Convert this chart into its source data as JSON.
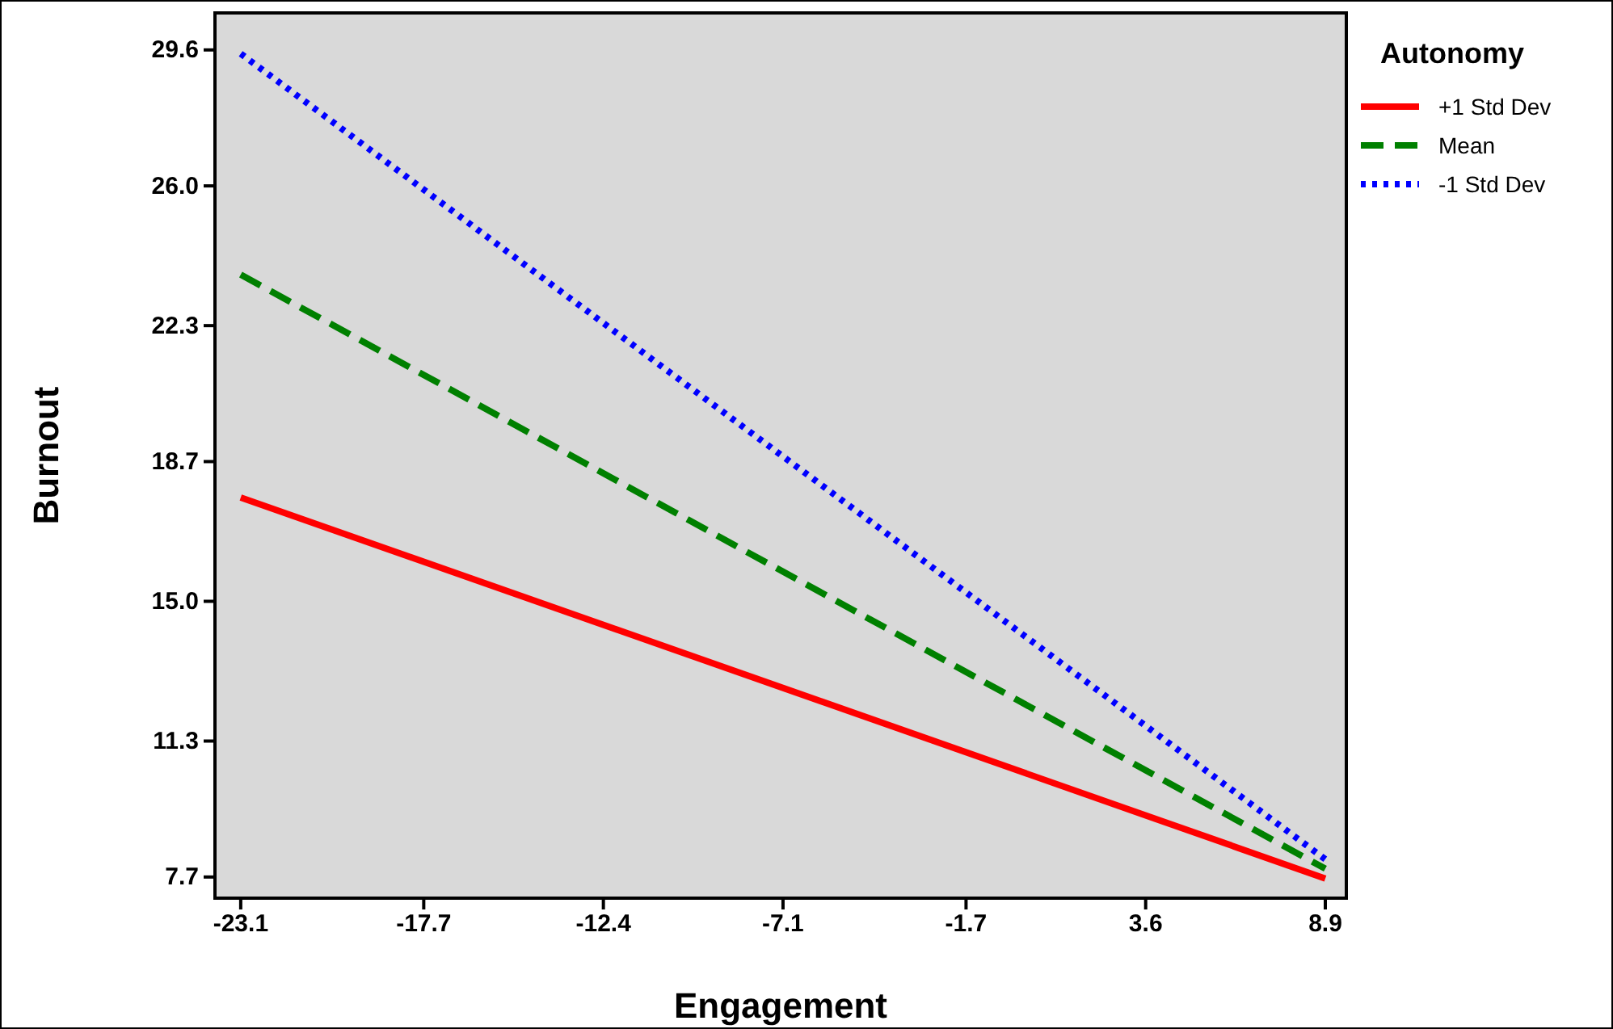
{
  "chart_data": {
    "type": "line",
    "xlabel": "Engagement",
    "ylabel": "Burnout",
    "legend_title": "Autonomy",
    "legend": "right",
    "x": [
      -23.1,
      8.9
    ],
    "series": [
      {
        "name": "+1 Std Dev",
        "color": "#ff0000",
        "values": [
          17.75,
          7.66
        ],
        "line_style": "solid"
      },
      {
        "name": "Mean",
        "color": "#008000",
        "values": [
          23.65,
          7.92
        ],
        "line_style": "dashed"
      },
      {
        "name": "-1 Std Dev",
        "color": "#0000ff",
        "values": [
          29.5,
          8.17
        ],
        "line_style": "dotted"
      }
    ],
    "xlim": [
      -23.86,
      9.52
    ],
    "xticks": [
      -23.1,
      -17.7,
      -12.4,
      -7.1,
      -1.7,
      3.6,
      8.9
    ],
    "ylim": [
      7.14,
      30.58
    ],
    "yticks": [
      7.7,
      11.3,
      {
        "value": 15,
        "label": "15.0"
      },
      18.7,
      22.3,
      {
        "value": 26,
        "label": "26.0"
      },
      29.6
    ],
    "grid": false,
    "marker": "none"
  }
}
